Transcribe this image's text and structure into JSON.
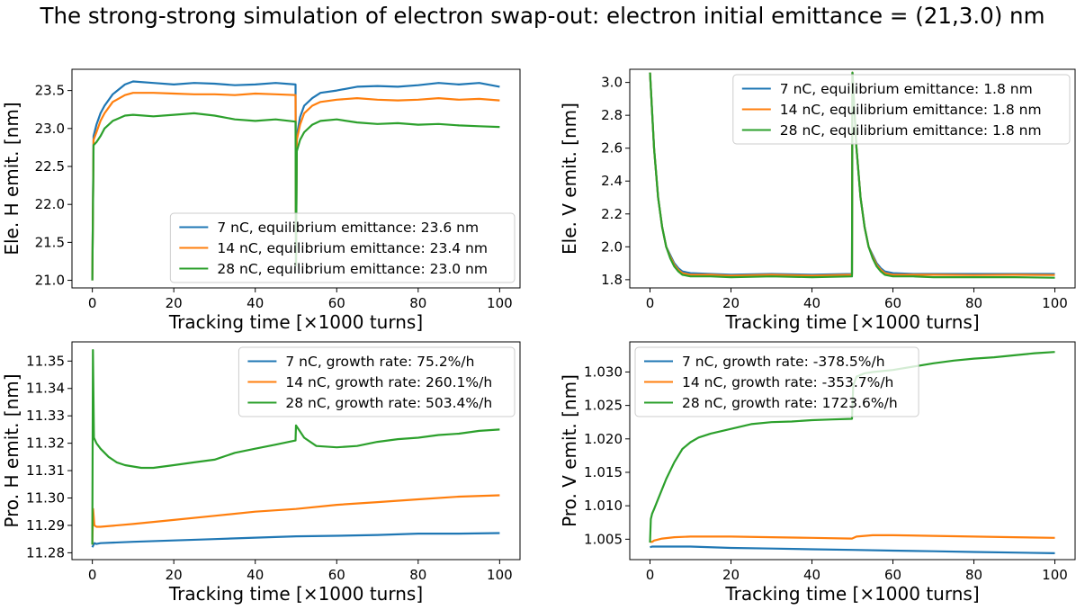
{
  "figure": {
    "suptitle": "The strong-strong simulation of electron swap-out: electron initial emittance = (21,3.0) nm"
  },
  "colors": {
    "blue": "#1f77b4",
    "orange": "#ff7f0e",
    "green": "#2ca02c"
  },
  "chart_data": [
    {
      "type": "line",
      "xlabel": "Tracking time [×1000 turns]",
      "ylabel": "Ele. H emit. [nm]",
      "xlim": [
        -5,
        105
      ],
      "ylim": [
        20.9,
        23.78
      ],
      "xticks": [
        0,
        20,
        40,
        60,
        80,
        100
      ],
      "xticklabels": [
        "0",
        "20",
        "40",
        "60",
        "80",
        "100"
      ],
      "yticks": [
        21.0,
        21.5,
        22.0,
        22.5,
        23.0,
        23.5
      ],
      "yticklabels": [
        "21.0",
        "21.5",
        "22.0",
        "22.5",
        "23.0",
        "23.5"
      ],
      "legend_position": "lower-right",
      "series": [
        {
          "name": "7 nC, equilibrium emittance: 23.6 nm",
          "color": "#1f77b4",
          "x": [
            0,
            0.3,
            1,
            2,
            3,
            5,
            8,
            10,
            15,
            20,
            25,
            30,
            35,
            40,
            45,
            49.9,
            50,
            50.2,
            51,
            52,
            54,
            56,
            60,
            65,
            70,
            75,
            80,
            85,
            90,
            95,
            100
          ],
          "y": [
            21.0,
            22.9,
            23.05,
            23.2,
            23.3,
            23.45,
            23.58,
            23.62,
            23.6,
            23.58,
            23.6,
            23.59,
            23.57,
            23.58,
            23.6,
            23.58,
            21.2,
            22.9,
            23.15,
            23.3,
            23.4,
            23.47,
            23.5,
            23.55,
            23.56,
            23.55,
            23.57,
            23.6,
            23.58,
            23.6,
            23.55
          ]
        },
        {
          "name": "14 nC, equilibrium emittance: 23.4 nm",
          "color": "#ff7f0e",
          "x": [
            0,
            0.3,
            1,
            2,
            3,
            5,
            8,
            10,
            15,
            20,
            25,
            30,
            35,
            40,
            45,
            49.9,
            50,
            50.2,
            51,
            52,
            54,
            56,
            60,
            65,
            70,
            75,
            80,
            85,
            90,
            95,
            100
          ],
          "y": [
            21.0,
            22.85,
            22.95,
            23.1,
            23.2,
            23.35,
            23.44,
            23.47,
            23.47,
            23.46,
            23.45,
            23.45,
            23.44,
            23.46,
            23.45,
            23.44,
            21.2,
            22.85,
            23.05,
            23.2,
            23.3,
            23.35,
            23.38,
            23.4,
            23.38,
            23.37,
            23.38,
            23.4,
            23.38,
            23.39,
            23.37
          ]
        },
        {
          "name": "28 nC, equilibrium emittance: 23.0 nm",
          "color": "#2ca02c",
          "x": [
            0,
            0.3,
            1,
            2,
            3,
            5,
            8,
            10,
            15,
            20,
            25,
            30,
            35,
            40,
            45,
            49.9,
            50,
            50.2,
            51,
            52,
            54,
            56,
            60,
            65,
            70,
            75,
            80,
            85,
            90,
            95,
            100
          ],
          "y": [
            21.0,
            22.78,
            22.82,
            22.9,
            23.0,
            23.1,
            23.17,
            23.18,
            23.16,
            23.18,
            23.2,
            23.17,
            23.12,
            23.1,
            23.12,
            23.09,
            21.2,
            22.7,
            22.85,
            22.95,
            23.05,
            23.1,
            23.12,
            23.08,
            23.06,
            23.07,
            23.05,
            23.06,
            23.04,
            23.03,
            23.02
          ]
        }
      ]
    },
    {
      "type": "line",
      "xlabel": "Tracking time [×1000 turns]",
      "ylabel": "Ele. V emit. [nm]",
      "xlim": [
        -5,
        105
      ],
      "ylim": [
        1.75,
        3.08
      ],
      "xticks": [
        0,
        20,
        40,
        60,
        80,
        100
      ],
      "xticklabels": [
        "0",
        "20",
        "40",
        "60",
        "80",
        "100"
      ],
      "yticks": [
        1.8,
        2.0,
        2.2,
        2.4,
        2.6,
        2.8,
        3.0
      ],
      "yticklabels": [
        "1.8",
        "2.0",
        "2.2",
        "2.4",
        "2.6",
        "2.8",
        "3.0"
      ],
      "legend_position": "upper-right",
      "series": [
        {
          "name": "7 nC, equilibrium emittance: 1.8 nm",
          "color": "#1f77b4",
          "x": [
            0,
            1,
            2,
            3,
            4,
            5,
            6,
            7,
            8,
            10,
            15,
            20,
            30,
            40,
            49.9,
            50,
            51,
            52,
            53,
            54,
            55,
            56,
            57,
            58,
            60,
            65,
            70,
            80,
            90,
            100
          ],
          "y": [
            3.06,
            2.6,
            2.3,
            2.12,
            2.0,
            1.95,
            1.9,
            1.87,
            1.85,
            1.84,
            1.835,
            1.83,
            1.835,
            1.83,
            1.835,
            3.06,
            2.6,
            2.3,
            2.12,
            2.0,
            1.95,
            1.9,
            1.87,
            1.85,
            1.84,
            1.835,
            1.835,
            1.835,
            1.835,
            1.835
          ]
        },
        {
          "name": "14 nC, equilibrium emittance: 1.8 nm",
          "color": "#ff7f0e",
          "x": [
            0,
            1,
            2,
            3,
            4,
            5,
            6,
            7,
            8,
            10,
            15,
            20,
            30,
            40,
            49.9,
            50,
            51,
            52,
            53,
            54,
            55,
            56,
            57,
            58,
            60,
            65,
            70,
            80,
            90,
            100
          ],
          "y": [
            3.06,
            2.6,
            2.3,
            2.12,
            2.0,
            1.94,
            1.89,
            1.86,
            1.84,
            1.83,
            1.83,
            1.825,
            1.83,
            1.825,
            1.83,
            3.06,
            2.6,
            2.3,
            2.12,
            2.0,
            1.94,
            1.89,
            1.86,
            1.84,
            1.83,
            1.83,
            1.83,
            1.828,
            1.83,
            1.828
          ]
        },
        {
          "name": "28 nC, equilibrium emittance: 1.8 nm",
          "color": "#2ca02c",
          "x": [
            0,
            1,
            2,
            3,
            4,
            5,
            6,
            7,
            8,
            10,
            15,
            20,
            30,
            40,
            49.9,
            50,
            51,
            52,
            53,
            54,
            55,
            56,
            57,
            58,
            60,
            65,
            70,
            80,
            90,
            100
          ],
          "y": [
            3.06,
            2.6,
            2.3,
            2.12,
            2.0,
            1.93,
            1.88,
            1.85,
            1.83,
            1.82,
            1.82,
            1.815,
            1.82,
            1.815,
            1.82,
            3.06,
            2.6,
            2.3,
            2.12,
            2.0,
            1.93,
            1.88,
            1.85,
            1.83,
            1.82,
            1.82,
            1.815,
            1.815,
            1.815,
            1.812
          ]
        }
      ]
    },
    {
      "type": "line",
      "xlabel": "Tracking time [×1000 turns]",
      "ylabel": "Pro. H emit. [nm]",
      "xlim": [
        -5,
        105
      ],
      "ylim": [
        11.2775,
        11.357
      ],
      "xticks": [
        0,
        20,
        40,
        60,
        80,
        100
      ],
      "xticklabels": [
        "0",
        "20",
        "40",
        "60",
        "80",
        "100"
      ],
      "yticks": [
        11.28,
        11.29,
        11.3,
        11.31,
        11.32,
        11.33,
        11.34,
        11.35
      ],
      "yticklabels": [
        "11.28",
        "11.29",
        "11.30",
        "11.31",
        "11.32",
        "11.33",
        "11.34",
        "11.35"
      ],
      "legend_position": "upper-right",
      "series": [
        {
          "name": "7 nC, growth rate: 75.2%/h",
          "color": "#1f77b4",
          "x": [
            0,
            0.5,
            1,
            2,
            10,
            20,
            30,
            40,
            50,
            60,
            70,
            80,
            90,
            100
          ],
          "y": [
            11.282,
            11.2835,
            11.2832,
            11.2835,
            11.284,
            11.2845,
            11.285,
            11.2855,
            11.286,
            11.2862,
            11.2865,
            11.287,
            11.287,
            11.2872
          ]
        },
        {
          "name": "14 nC, growth rate: 260.1%/h",
          "color": "#ff7f0e",
          "x": [
            0,
            0.2,
            0.5,
            1,
            2,
            10,
            20,
            30,
            40,
            50,
            60,
            70,
            80,
            90,
            100
          ],
          "y": [
            11.283,
            11.296,
            11.29,
            11.2895,
            11.2895,
            11.2905,
            11.292,
            11.2935,
            11.295,
            11.296,
            11.2975,
            11.2985,
            11.2995,
            11.3005,
            11.301
          ]
        },
        {
          "name": "28 nC, growth rate: 503.4%/h",
          "color": "#2ca02c",
          "x": [
            0,
            0.15,
            0.4,
            1,
            2,
            4,
            6,
            8,
            10,
            12,
            15,
            20,
            25,
            30,
            35,
            40,
            45,
            49.9,
            50,
            52,
            55,
            60,
            65,
            70,
            75,
            80,
            85,
            90,
            95,
            100
          ],
          "y": [
            11.283,
            11.354,
            11.322,
            11.32,
            11.318,
            11.315,
            11.313,
            11.312,
            11.3115,
            11.311,
            11.311,
            11.312,
            11.313,
            11.314,
            11.3165,
            11.318,
            11.3195,
            11.321,
            11.3265,
            11.322,
            11.319,
            11.3185,
            11.319,
            11.3205,
            11.3215,
            11.322,
            11.323,
            11.3235,
            11.3245,
            11.325
          ]
        }
      ]
    },
    {
      "type": "line",
      "xlabel": "Tracking time [×1000 turns]",
      "ylabel": "Pro. V emit. [nm]",
      "xlim": [
        -5,
        105
      ],
      "ylim": [
        1.00195,
        1.0345
      ],
      "xticks": [
        0,
        20,
        40,
        60,
        80,
        100
      ],
      "xticklabels": [
        "0",
        "20",
        "40",
        "60",
        "80",
        "100"
      ],
      "yticks": [
        1.005,
        1.01,
        1.015,
        1.02,
        1.025,
        1.03
      ],
      "yticklabels": [
        "1.005",
        "1.010",
        "1.015",
        "1.020",
        "1.025",
        "1.030"
      ],
      "legend_position": "upper-left",
      "series": [
        {
          "name": "7 nC, growth rate: -378.5%/h",
          "color": "#1f77b4",
          "x": [
            0,
            0.5,
            1,
            10,
            20,
            30,
            40,
            50,
            60,
            70,
            80,
            90,
            100
          ],
          "y": [
            1.0038,
            1.0039,
            1.0039,
            1.0039,
            1.0037,
            1.0036,
            1.0035,
            1.0034,
            1.0033,
            1.0032,
            1.0031,
            1.003,
            1.0029
          ]
        },
        {
          "name": "14 nC, growth rate: -353.7%/h",
          "color": "#ff7f0e",
          "x": [
            0,
            0.5,
            1,
            3,
            6,
            10,
            15,
            20,
            30,
            40,
            49.9,
            51,
            55,
            60,
            70,
            80,
            90,
            100
          ],
          "y": [
            1.0046,
            1.0046,
            1.0048,
            1.0051,
            1.0053,
            1.0054,
            1.0054,
            1.0054,
            1.0053,
            1.0052,
            1.0051,
            1.0054,
            1.0056,
            1.0056,
            1.0055,
            1.0054,
            1.0053,
            1.0052
          ]
        },
        {
          "name": "28 nC, growth rate: 1723.6%/h",
          "color": "#2ca02c",
          "x": [
            0,
            0.2,
            0.5,
            1,
            2,
            3,
            4,
            6,
            8,
            10,
            12,
            15,
            20,
            25,
            30,
            35,
            40,
            45,
            49.9,
            50.2,
            51,
            53,
            55,
            60,
            65,
            70,
            75,
            80,
            85,
            90,
            95,
            100
          ],
          "y": [
            1.0045,
            1.008,
            1.0088,
            1.0095,
            1.011,
            1.0125,
            1.014,
            1.0165,
            1.0185,
            1.0195,
            1.0202,
            1.0208,
            1.0215,
            1.0222,
            1.0225,
            1.0226,
            1.0228,
            1.0229,
            1.023,
            1.028,
            1.0293,
            1.0298,
            1.03,
            1.0303,
            1.0308,
            1.0313,
            1.0317,
            1.032,
            1.0322,
            1.0325,
            1.0328,
            1.033
          ]
        }
      ]
    }
  ]
}
